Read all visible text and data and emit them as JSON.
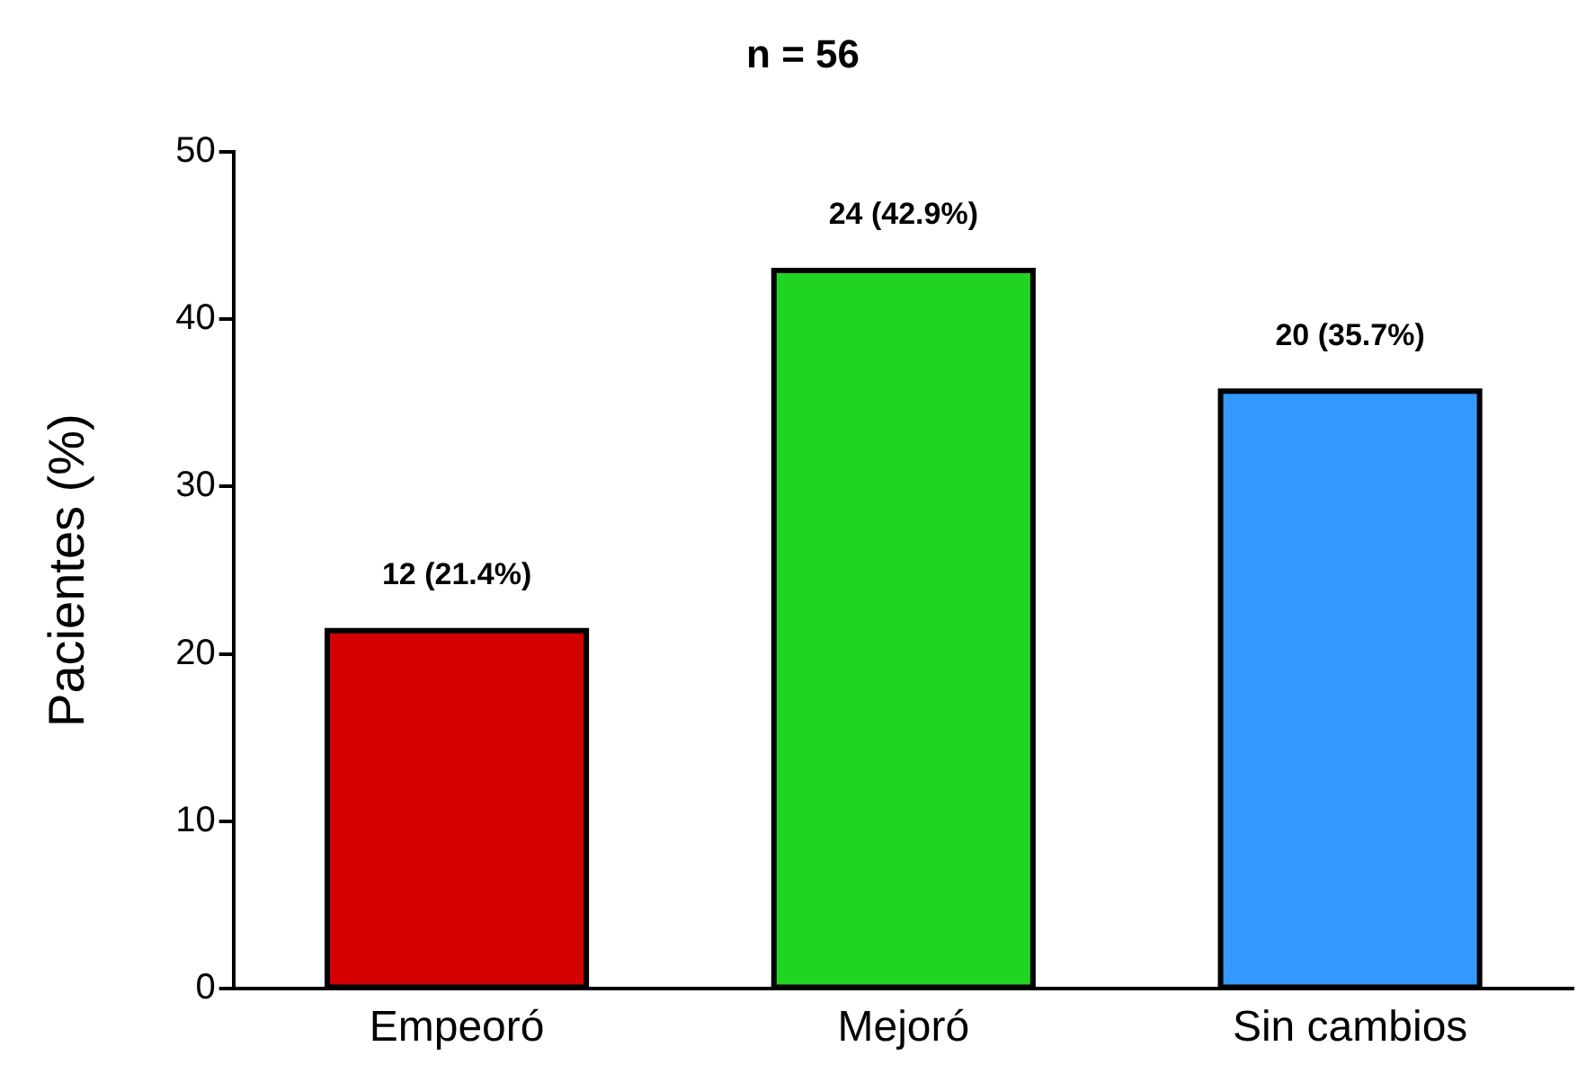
{
  "chart_data": {
    "type": "bar",
    "title": "n = 56",
    "ylabel": "Pacientes (%)",
    "categories": [
      "Empeoró",
      "Mejoró",
      "Sin cambios"
    ],
    "values": [
      21.4,
      42.9,
      35.7
    ],
    "colors": [
      "#d40000",
      "#22d422",
      "#3399ff"
    ],
    "value_labels": [
      "12 (21.4%)",
      "24 (42.9%)",
      "20 (35.7%)"
    ],
    "ylim": [
      0,
      50
    ],
    "yticks": [
      0,
      10,
      20,
      30,
      40,
      50
    ],
    "grid": false,
    "legend": false
  }
}
